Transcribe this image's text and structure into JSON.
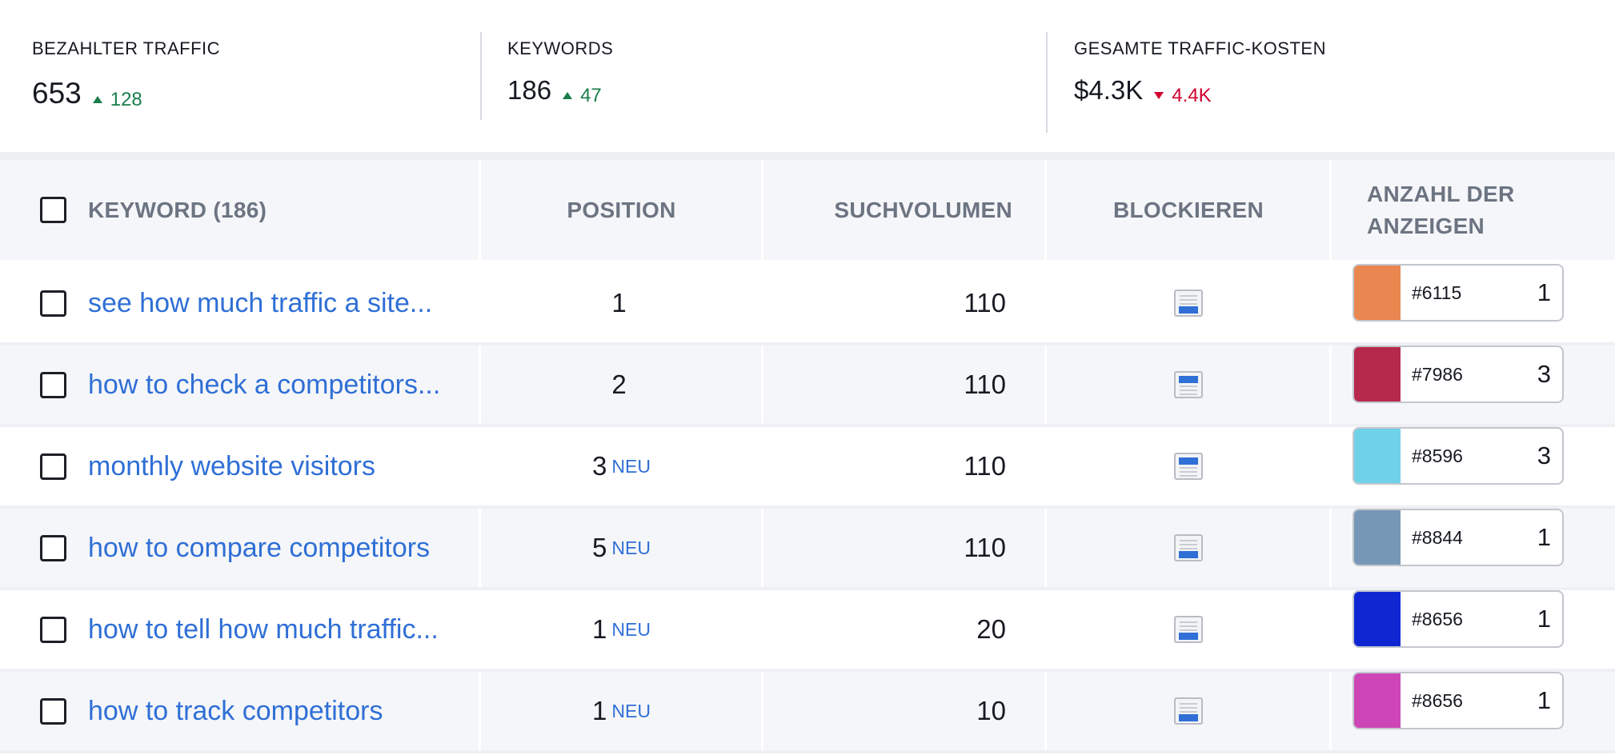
{
  "summary": {
    "paid_traffic": {
      "label": "BEZAHLTER TRAFFIC",
      "value": "653",
      "delta": "128",
      "direction": "up"
    },
    "keywords": {
      "label": "KEYWORDS",
      "value": "186",
      "delta": "47",
      "direction": "up"
    },
    "traffic_cost": {
      "label": "GESAMTE TRAFFIC-KOSTEN",
      "value": "$4.3K",
      "delta": "4.4K",
      "direction": "down"
    }
  },
  "table": {
    "headers": {
      "keyword": "KEYWORD (186)",
      "position": "POSITION",
      "volume": "SUCHVOLUMEN",
      "block": "BLOCKIEREN",
      "ads_line1": "ANZAHL DER",
      "ads_line2": "ANZEIGEN"
    },
    "rows": [
      {
        "keyword": "see how much traffic a site...",
        "position": "1",
        "new": "",
        "volume": "110",
        "ad_code": "#6115",
        "ad_count": "1",
        "ad_color": "#ea864f",
        "block_variant": "bottom"
      },
      {
        "keyword": "how to check a competitors...",
        "position": "2",
        "new": "",
        "volume": "110",
        "ad_code": "#7986",
        "ad_count": "3",
        "ad_color": "#b52a4c",
        "block_variant": "top"
      },
      {
        "keyword": "monthly website visitors",
        "position": "3",
        "new": "NEU",
        "volume": "110",
        "ad_code": "#8596",
        "ad_count": "3",
        "ad_color": "#6fd2e8",
        "block_variant": "top"
      },
      {
        "keyword": "how to compare competitors",
        "position": "5",
        "new": "NEU",
        "volume": "110",
        "ad_code": "#8844",
        "ad_count": "1",
        "ad_color": "#7797b6",
        "block_variant": "bottom"
      },
      {
        "keyword": "how to tell how much traffic...",
        "position": "1",
        "new": "NEU",
        "volume": "20",
        "ad_code": "#8656",
        "ad_count": "1",
        "ad_color": "#0f27d3",
        "block_variant": "bottom"
      },
      {
        "keyword": "how to track competitors",
        "position": "1",
        "new": "NEU",
        "volume": "10",
        "ad_code": "#8656",
        "ad_count": "1",
        "ad_color": "#cd45b6",
        "block_variant": "bottom"
      }
    ]
  },
  "colors": {
    "link": "#2f6fd6",
    "positive": "#1a7d4b",
    "negative": "#d1002f"
  },
  "icons": {
    "checkbox": "checkbox-icon",
    "block": "block-preview-icon",
    "trend_up": "triangle-up-icon",
    "trend_down": "triangle-down-icon"
  }
}
